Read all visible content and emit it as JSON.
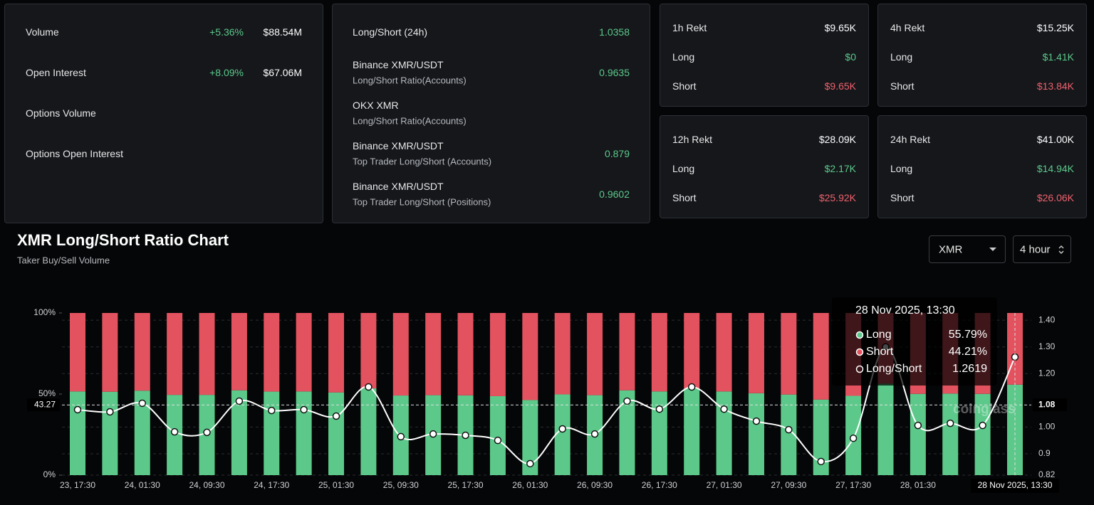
{
  "stats": {
    "rows": [
      {
        "label": "Volume",
        "change": "+5.36%",
        "value": "$88.54M"
      },
      {
        "label": "Open Interest",
        "change": "+8.09%",
        "value": "$67.06M"
      },
      {
        "label": "Options Volume"
      },
      {
        "label": "Options Open Interest"
      }
    ]
  },
  "ratios": {
    "rows": [
      {
        "label": "Long/Short (24h)",
        "value": "1.0358"
      },
      {
        "label": "Binance XMR/USDT",
        "sublabel": "Long/Short Ratio(Accounts)",
        "value": "0.9635"
      },
      {
        "label": "OKX XMR",
        "sublabel": "Long/Short Ratio(Accounts)"
      },
      {
        "label": "Binance XMR/USDT",
        "sublabel": "Top Trader Long/Short (Accounts)",
        "value": "0.879"
      },
      {
        "label": "Binance XMR/USDT",
        "sublabel": "Top Trader Long/Short (Positions)",
        "value": "0.9602"
      }
    ]
  },
  "rekt": [
    {
      "title": "1h Rekt",
      "total": "$9.65K",
      "long_label": "Long",
      "long": "$0",
      "short_label": "Short",
      "short": "$9.65K"
    },
    {
      "title": "4h Rekt",
      "total": "$15.25K",
      "long_label": "Long",
      "long": "$1.41K",
      "short_label": "Short",
      "short": "$13.84K"
    },
    {
      "title": "12h Rekt",
      "total": "$28.09K",
      "long_label": "Long",
      "long": "$2.17K",
      "short_label": "Short",
      "short": "$25.92K"
    },
    {
      "title": "24h Rekt",
      "total": "$41.00K",
      "long_label": "Long",
      "long": "$14.94K",
      "short_label": "Short",
      "short": "$26.06K"
    }
  ],
  "header": {
    "title": "XMR Long/Short Ratio Chart",
    "subtitle": "Taker Buy/Sell Volume",
    "symbol": "XMR",
    "interval": "4 hour"
  },
  "chart_data": {
    "type": "bar",
    "stacked": true,
    "categories": [
      "23, 17:30",
      null,
      "24, 01:30",
      null,
      "24, 09:30",
      null,
      "24, 17:30",
      null,
      "25, 01:30",
      null,
      "25, 09:30",
      null,
      "25, 17:30",
      null,
      "26, 01:30",
      null,
      "26, 09:30",
      null,
      "26, 17:30",
      null,
      "27, 01:30",
      null,
      "27, 09:30",
      null,
      "27, 17:30",
      null,
      "28, 01:30",
      null,
      null,
      null
    ],
    "series": [
      {
        "name": "Long",
        "color": "#5cc98a",
        "values": [
          51.6,
          51.4,
          52.1,
          49.5,
          49.5,
          52.3,
          51.5,
          51.6,
          51.0,
          53.5,
          49.1,
          49.3,
          49.2,
          48.7,
          46.3,
          49.8,
          49.3,
          52.3,
          51.6,
          53.5,
          51.6,
          50.5,
          49.7,
          46.6,
          48.9,
          56.5,
          50.1,
          50.3,
          50.1,
          55.79
        ]
      },
      {
        "name": "Short",
        "color": "#e2525f",
        "values": [
          48.4,
          48.6,
          47.9,
          50.5,
          50.5,
          47.7,
          48.5,
          48.4,
          49.0,
          46.5,
          50.9,
          50.7,
          50.8,
          51.3,
          53.7,
          50.2,
          50.7,
          47.7,
          48.4,
          46.5,
          48.4,
          49.5,
          50.3,
          53.4,
          51.1,
          43.5,
          49.9,
          49.7,
          49.9,
          44.21
        ]
      },
      {
        "name": "Long/Short",
        "color": "#ffffff",
        "type": "line",
        "axis": "y2",
        "values": [
          1.065,
          1.057,
          1.089,
          0.982,
          0.98,
          1.097,
          1.062,
          1.065,
          1.041,
          1.15,
          0.964,
          0.974,
          0.969,
          0.95,
          0.863,
          0.993,
          0.974,
          1.097,
          1.067,
          1.15,
          1.067,
          1.022,
          0.99,
          0.871,
          0.958,
          1.3,
          1.006,
          1.014,
          1.006,
          1.2619
        ]
      }
    ],
    "ylim": [
      0,
      100
    ],
    "yticks": [
      {
        "value": 0,
        "label": "0%"
      },
      {
        "value": 50,
        "label": "50%"
      },
      {
        "value": 100,
        "label": "100%"
      }
    ],
    "y2lim": [
      0.82,
      1.427
    ],
    "y2ticks": [
      0.82,
      0.9,
      {
        "value": 1.0,
        "label": "1.00"
      },
      {
        "value": 1.2,
        "label": "1.20"
      },
      {
        "value": 1.3,
        "label": "1.30"
      },
      {
        "value": 1.4,
        "label": "1.40"
      }
    ],
    "grid": true,
    "crosshair": {
      "x_label": "28 Nov 2025, 13:30",
      "y": 43.27,
      "y2": 1.08
    },
    "tooltip": {
      "title": "28 Nov 2025, 13:30",
      "value_labels": [
        "55.79%",
        "44.21%",
        "1.2619"
      ]
    },
    "watermark": "coinglass"
  }
}
